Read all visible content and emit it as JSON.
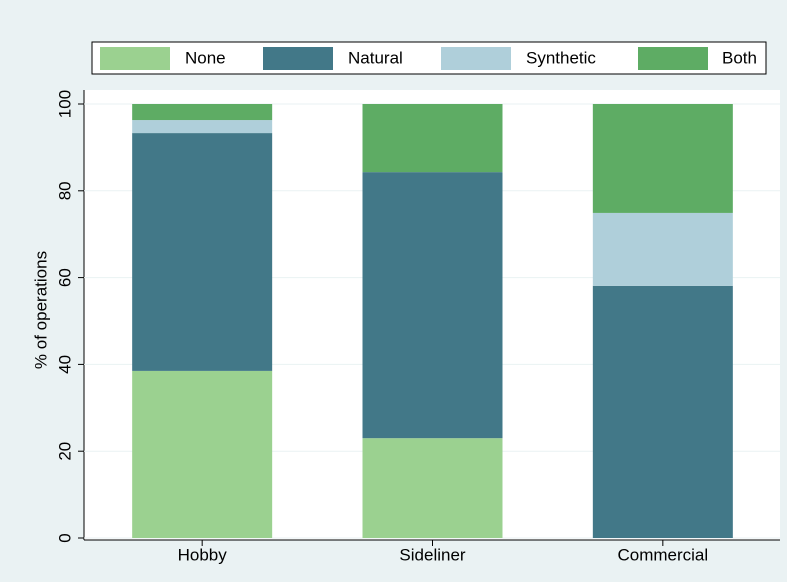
{
  "chart_data": {
    "type": "stacked_bar",
    "categories": [
      "Hobby",
      "Sideliner",
      "Commercial"
    ],
    "series": [
      {
        "name": "None",
        "color": "#9bd190",
        "values": [
          38.5,
          23.0,
          0
        ]
      },
      {
        "name": "Natural",
        "color": "#427888",
        "values": [
          54.8,
          61.3,
          58.1
        ]
      },
      {
        "name": "Synthetic",
        "color": "#afcfda",
        "values": [
          3.0,
          0,
          16.8
        ]
      },
      {
        "name": "Both",
        "color": "#5eac64",
        "values": [
          3.7,
          15.7,
          25.1
        ]
      }
    ],
    "y_label": "% of operations",
    "ylim": [
      0,
      100
    ],
    "yticks": [
      0,
      20,
      40,
      60,
      80,
      100
    ],
    "grid": true
  }
}
